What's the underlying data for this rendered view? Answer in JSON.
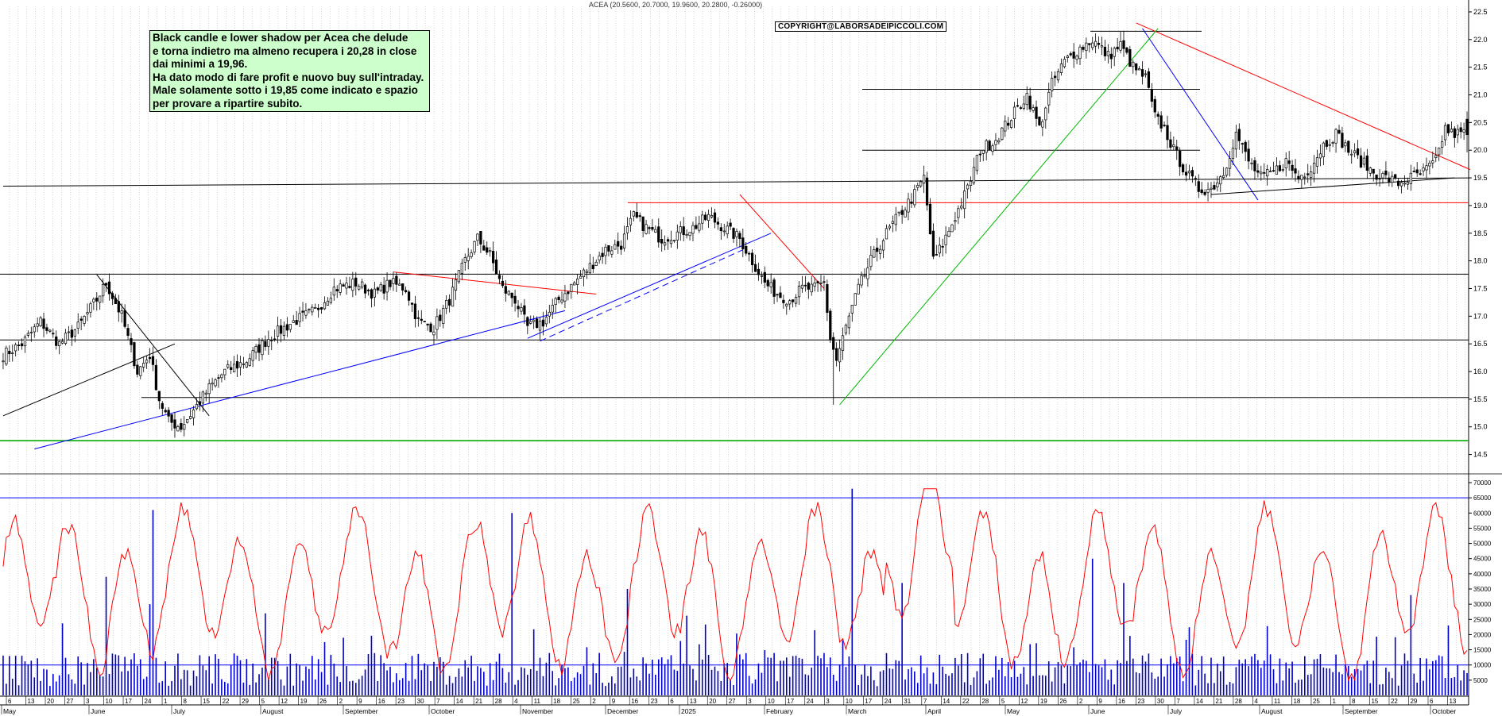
{
  "header": {
    "title": "ACEA (20.5600, 20.7000, 19.9600, 20.2800, -0.26000)"
  },
  "watermark": "COPYRIGHT@LABORSADEIPICCOLI.COM",
  "note": {
    "lines": [
      "Black candle e lower shadow per Acea che delude",
      "e torna indietro ma almeno recupera i 20,28 in close",
      "dai minimi a 19,96.",
      "Ha dato modo di fare profit e nuovo buy sull'intraday.",
      "Male solamente sotto i 19,85 come indicato e spazio",
      "per provare a ripartire subito."
    ]
  },
  "colors": {
    "candle": "#000000",
    "trend_red": "#ff0000",
    "trend_blue": "#0000ff",
    "trend_green": "#00bb00",
    "volume": "#0000cc",
    "oscillator": "#ff0000",
    "support_green": "#00aa00",
    "grid": "#999999"
  },
  "chart_data": [
    {
      "type": "candlestick",
      "title": "ACEA (20.5600, 20.7000, 19.9600, 20.2800, -0.26000)",
      "ylim": [
        14.25,
        22.6
      ],
      "yticks": [
        14.5,
        15.0,
        15.5,
        16.0,
        16.5,
        17.0,
        17.5,
        18.0,
        18.5,
        19.0,
        19.5,
        20.0,
        20.5,
        21.0,
        21.5,
        22.0,
        22.5
      ],
      "months": [
        "May",
        "June",
        "July",
        "August",
        "September",
        "October",
        "November",
        "December",
        "2025",
        "February",
        "March",
        "April",
        "May",
        "June",
        "July",
        "August",
        "September",
        "October"
      ],
      "day_ticks": [
        "6",
        "13",
        "20",
        "27",
        "3",
        "10",
        "17",
        "24",
        "1",
        "8",
        "15",
        "22",
        "29",
        "5",
        "12",
        "19",
        "26",
        "2",
        "9",
        "16",
        "23",
        "30",
        "7",
        "14",
        "21",
        "28",
        "4",
        "11",
        "18",
        "25",
        "2",
        "9",
        "16",
        "23",
        "6",
        "13",
        "20",
        "27",
        "3",
        "10",
        "17",
        "24",
        "3",
        "10",
        "17",
        "24",
        "31",
        "7",
        "14",
        "22",
        "28",
        "5",
        "12",
        "19",
        "26",
        "2",
        "9",
        "16",
        "23",
        "30",
        "7",
        "14",
        "21",
        "28",
        "4",
        "11",
        "18",
        "25",
        "1",
        "8",
        "15",
        "22",
        "29",
        "6",
        "13"
      ],
      "waypoints": [
        [
          0,
          16.3
        ],
        [
          6,
          16.5
        ],
        [
          12,
          16.9
        ],
        [
          18,
          16.5
        ],
        [
          24,
          16.8
        ],
        [
          30,
          17.3
        ],
        [
          33,
          17.6
        ],
        [
          38,
          17.0
        ],
        [
          43,
          16.0
        ],
        [
          47,
          16.3
        ],
        [
          50,
          15.5
        ],
        [
          53,
          15.1
        ],
        [
          57,
          15.0
        ],
        [
          61,
          15.3
        ],
        [
          66,
          15.7
        ],
        [
          71,
          16.0
        ],
        [
          78,
          16.2
        ],
        [
          85,
          16.6
        ],
        [
          93,
          16.9
        ],
        [
          100,
          17.1
        ],
        [
          106,
          17.5
        ],
        [
          113,
          17.6
        ],
        [
          119,
          17.4
        ],
        [
          124,
          17.6
        ],
        [
          129,
          17.5
        ],
        [
          133,
          16.9
        ],
        [
          138,
          16.8
        ],
        [
          143,
          17.3
        ],
        [
          148,
          18.0
        ],
        [
          152,
          18.4
        ],
        [
          156,
          18.1
        ],
        [
          160,
          17.5
        ],
        [
          164,
          17.3
        ],
        [
          168,
          16.8
        ],
        [
          173,
          16.9
        ],
        [
          178,
          17.3
        ],
        [
          183,
          17.6
        ],
        [
          188,
          17.9
        ],
        [
          193,
          18.2
        ],
        [
          198,
          18.3
        ],
        [
          202,
          18.8
        ],
        [
          206,
          18.6
        ],
        [
          211,
          18.4
        ],
        [
          216,
          18.5
        ],
        [
          221,
          18.6
        ],
        [
          226,
          18.8
        ],
        [
          231,
          18.6
        ],
        [
          236,
          18.4
        ],
        [
          240,
          18.0
        ],
        [
          244,
          17.6
        ],
        [
          248,
          17.4
        ],
        [
          252,
          17.3
        ],
        [
          256,
          17.5
        ],
        [
          260,
          17.5
        ],
        [
          263,
          17.6
        ],
        [
          265,
          16.6
        ],
        [
          267,
          16.2
        ],
        [
          270,
          16.8
        ],
        [
          274,
          17.5
        ],
        [
          278,
          18.0
        ],
        [
          283,
          18.5
        ],
        [
          288,
          18.9
        ],
        [
          292,
          19.2
        ],
        [
          295,
          19.5
        ],
        [
          298,
          18.0
        ],
        [
          301,
          18.3
        ],
        [
          305,
          18.8
        ],
        [
          309,
          19.3
        ],
        [
          313,
          20.0
        ],
        [
          318,
          20.2
        ],
        [
          323,
          20.6
        ],
        [
          328,
          21.0
        ],
        [
          332,
          20.4
        ],
        [
          336,
          21.2
        ],
        [
          340,
          21.6
        ],
        [
          344,
          21.8
        ],
        [
          349,
          22.0
        ],
        [
          354,
          21.7
        ],
        [
          358,
          21.9
        ],
        [
          362,
          21.5
        ],
        [
          366,
          21.3
        ],
        [
          369,
          20.6
        ],
        [
          372,
          20.4
        ],
        [
          375,
          20.0
        ],
        [
          379,
          19.6
        ],
        [
          383,
          19.3
        ],
        [
          387,
          19.3
        ],
        [
          391,
          19.6
        ],
        [
          395,
          20.3
        ],
        [
          399,
          19.8
        ],
        [
          403,
          19.5
        ],
        [
          407,
          19.6
        ],
        [
          411,
          19.8
        ],
        [
          415,
          19.5
        ],
        [
          419,
          19.7
        ],
        [
          423,
          20.1
        ],
        [
          427,
          20.3
        ],
        [
          431,
          20.0
        ],
        [
          435,
          19.8
        ],
        [
          439,
          19.6
        ],
        [
          443,
          19.5
        ],
        [
          447,
          19.4
        ],
        [
          451,
          19.5
        ],
        [
          455,
          19.6
        ],
        [
          459,
          19.8
        ],
        [
          462,
          20.4
        ],
        [
          464,
          20.3
        ]
      ],
      "last_candle": {
        "open": 20.56,
        "high": 20.7,
        "low": 19.96,
        "close": 20.28,
        "change": -0.26
      },
      "horizontal_levels": [
        15.53,
        16.57,
        17.76,
        19.05,
        20.0,
        21.1,
        22.15
      ],
      "support_level_green": 14.75,
      "annotations_lines": [
        {
          "color": "red",
          "from": [
            363,
            22.3
          ],
          "to": [
            470,
            19.65
          ]
        },
        {
          "color": "red",
          "from": [
            236,
            19.2
          ],
          "to": [
            263,
            17.5
          ]
        },
        {
          "color": "red",
          "from": [
            125,
            17.8
          ],
          "to": [
            190,
            17.4
          ]
        },
        {
          "color": "blue",
          "from": [
            10,
            14.6
          ],
          "to": [
            180,
            17.1
          ]
        },
        {
          "color": "blue",
          "from": [
            168,
            16.6
          ],
          "to": [
            246,
            18.5
          ]
        },
        {
          "color": "blue",
          "from": [
            365,
            22.2
          ],
          "to": [
            402,
            19.1
          ]
        },
        {
          "color": "green",
          "from": [
            268,
            15.4
          ],
          "to": [
            370,
            22.2
          ]
        },
        {
          "color": "black",
          "from": [
            0,
            15.2
          ],
          "to": [
            55,
            16.5
          ]
        },
        {
          "color": "black",
          "from": [
            30,
            17.75
          ],
          "to": [
            66,
            15.2
          ]
        },
        {
          "color": "black",
          "from": [
            0,
            19.35
          ],
          "to": [
            470,
            19.5
          ]
        },
        {
          "color": "black",
          "from": [
            387,
            19.2
          ],
          "to": [
            465,
            19.5
          ]
        }
      ]
    },
    {
      "type": "bar",
      "name_hidden": true,
      "ylim": [
        0,
        70000
      ],
      "yticks": [
        5000,
        10000,
        15000,
        20000,
        25000,
        30000,
        35000,
        40000,
        45000,
        50000,
        55000,
        60000,
        65000,
        70000
      ],
      "volume_spikes": [
        [
          33,
          39000
        ],
        [
          47,
          30000
        ],
        [
          48,
          61000
        ],
        [
          84,
          27000
        ],
        [
          163,
          60000
        ],
        [
          200,
          35000
        ],
        [
          272,
          68000
        ],
        [
          288,
          37000
        ],
        [
          349,
          45000
        ],
        [
          359,
          37000
        ],
        [
          451,
          33000
        ],
        [
          463,
          23000
        ]
      ],
      "oscillator": "red line ranging 5000-68000",
      "reference_levels": [
        10000,
        65000
      ]
    }
  ]
}
